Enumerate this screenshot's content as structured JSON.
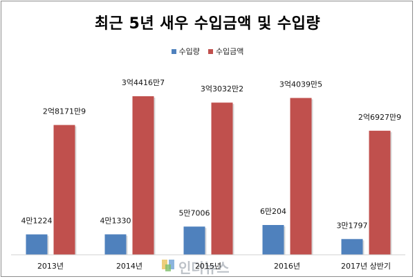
{
  "chart_data": {
    "type": "bar",
    "title": "최근 5년 새우 수입금액 및 수입량",
    "categories": [
      "2013년",
      "2014년",
      "2015년",
      "2016년",
      "2017년 상반기"
    ],
    "series": [
      {
        "name": "수입량",
        "color": "#4f81bd",
        "values": [
          41224,
          41330,
          57006,
          60204,
          31797
        ],
        "labels": [
          "4만1224",
          "4만1330",
          "5만7006",
          "6만204",
          "3만1797"
        ]
      },
      {
        "name": "수입금액",
        "color": "#c0504d",
        "values": [
          281719,
          344167,
          330322,
          340395,
          269279
        ],
        "labels": [
          "2억8171만9",
          "3억4416만7",
          "3억3032만2",
          "3억4039만5",
          "2억6927만9"
        ]
      }
    ],
    "legend_position": "top",
    "grid": false
  },
  "watermark": {
    "text": "인더뉴스"
  }
}
